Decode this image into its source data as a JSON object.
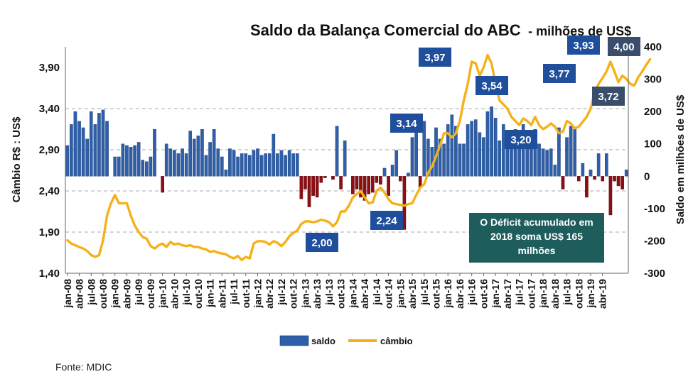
{
  "chart_data": {
    "type": "bar+line",
    "title": "Saldo da Balança Comercial do ABC",
    "subtitle": "- milhões de US$",
    "ylabel_left": "Câmbio R$ : US$",
    "ylabel_right": "Saldo em milhões de US$",
    "ylim_left": [
      1.4,
      4.15
    ],
    "ylim_right": [
      -300,
      400
    ],
    "yticks_left": [
      "3,90",
      "3,40",
      "2,90",
      "2,40",
      "1,90",
      "1,40"
    ],
    "yticks_right": [
      "400",
      "300",
      "200",
      "100",
      "0",
      "-100",
      "-200",
      "-300"
    ],
    "x_tick_labels": [
      "jan-08",
      "abr-08",
      "jul-08",
      "out-08",
      "jan-09",
      "abr-09",
      "jul-09",
      "out-09",
      "jan-10",
      "abr-10",
      "jul-10",
      "out-10",
      "jan-11",
      "abr-11",
      "jul-11",
      "out-11",
      "jan-12",
      "abr-12",
      "jul-12",
      "out-12",
      "jan-13",
      "abr-13",
      "jul-13",
      "out-13",
      "jan-14",
      "abr-14",
      "jul-14",
      "out-14",
      "jan-15",
      "abr-15",
      "jul-15",
      "out-15",
      "jan-16",
      "abr-16",
      "jul-16",
      "out-16",
      "jan-17",
      "abr-17",
      "jul-17",
      "out-17",
      "jan-18",
      "abr-18",
      "jul-18",
      "out-18",
      "jan-19",
      "abr-19"
    ],
    "grid": true,
    "series": [
      {
        "name": "saldo",
        "type": "bar",
        "axis": "right",
        "color": "#2e5fa8",
        "negative_color": "#8b0f14",
        "values": [
          95,
          160,
          200,
          170,
          150,
          115,
          200,
          160,
          195,
          205,
          170,
          0,
          60,
          60,
          100,
          95,
          90,
          95,
          105,
          50,
          45,
          60,
          145,
          0,
          -50,
          100,
          85,
          80,
          70,
          85,
          70,
          140,
          115,
          125,
          145,
          65,
          105,
          145,
          85,
          60,
          20,
          85,
          80,
          60,
          70,
          70,
          65,
          80,
          85,
          65,
          70,
          70,
          130,
          70,
          80,
          65,
          80,
          70,
          70,
          -70,
          -40,
          -95,
          -60,
          -65,
          -20,
          -5,
          0,
          -10,
          155,
          -40,
          110,
          0,
          -55,
          -40,
          -65,
          -75,
          -55,
          -50,
          -20,
          -25,
          25,
          -60,
          35,
          80,
          -15,
          -165,
          10,
          120,
          150,
          -35,
          170,
          115,
          90,
          150,
          115,
          100,
          160,
          190,
          155,
          100,
          100,
          160,
          170,
          175,
          135,
          120,
          200,
          215,
          180,
          110,
          160,
          130,
          140,
          145,
          95,
          160,
          135,
          125,
          145,
          100,
          85,
          80,
          85,
          35,
          150,
          -40,
          120,
          155,
          145,
          -15,
          40,
          -65,
          20,
          -10,
          70,
          -15,
          70,
          -120,
          -15,
          -30,
          -40,
          20
        ]
      },
      {
        "name": "câmbio",
        "type": "line",
        "axis": "left",
        "color": "#f5b11a",
        "values": [
          1.8,
          1.76,
          1.74,
          1.72,
          1.7,
          1.67,
          1.62,
          1.6,
          1.62,
          1.8,
          2.1,
          2.25,
          2.35,
          2.25,
          2.25,
          2.25,
          2.1,
          1.98,
          1.9,
          1.84,
          1.82,
          1.73,
          1.7,
          1.74,
          1.76,
          1.72,
          1.78,
          1.75,
          1.76,
          1.74,
          1.73,
          1.74,
          1.72,
          1.72,
          1.7,
          1.69,
          1.66,
          1.67,
          1.65,
          1.64,
          1.63,
          1.6,
          1.58,
          1.61,
          1.56,
          1.6,
          1.58,
          1.76,
          1.79,
          1.79,
          1.78,
          1.75,
          1.79,
          1.77,
          1.73,
          1.78,
          1.85,
          1.89,
          1.92,
          2.0,
          2.03,
          2.03,
          2.02,
          2.03,
          2.05,
          2.04,
          2.02,
          1.97,
          2.02,
          2.15,
          2.15,
          2.22,
          2.32,
          2.36,
          2.4,
          2.32,
          2.25,
          2.26,
          2.4,
          2.44,
          2.38,
          2.3,
          2.25,
          2.24,
          2.23,
          2.22,
          2.24,
          2.25,
          2.35,
          2.44,
          2.48,
          2.62,
          2.7,
          2.82,
          2.95,
          3.1,
          3.1,
          3.05,
          3.1,
          3.25,
          3.5,
          3.7,
          3.97,
          3.95,
          3.8,
          3.9,
          4.05,
          3.95,
          3.7,
          3.5,
          3.45,
          3.4,
          3.3,
          3.25,
          3.2,
          3.28,
          3.25,
          3.2,
          3.3,
          3.2,
          3.15,
          3.18,
          3.22,
          3.18,
          3.1,
          3.12,
          3.25,
          3.22,
          3.16,
          3.18,
          3.24,
          3.3,
          3.4,
          3.6,
          3.7,
          3.77,
          3.85,
          3.97,
          3.85,
          3.72,
          3.8,
          3.76,
          3.7,
          3.68,
          3.78,
          3.85,
          3.93,
          4.0
        ]
      }
    ],
    "annotations": [
      {
        "text": "2,00",
        "style": "blue"
      },
      {
        "text": "2,24",
        "style": "blue"
      },
      {
        "text": "3,14",
        "style": "blue"
      },
      {
        "text": "3,97",
        "style": "blue"
      },
      {
        "text": "3,54",
        "style": "blue"
      },
      {
        "text": "3,20",
        "style": "blue"
      },
      {
        "text": "3,77",
        "style": "blue"
      },
      {
        "text": "3,93",
        "style": "blue"
      },
      {
        "text": "3,72",
        "style": "gray"
      },
      {
        "text": "4,00",
        "style": "gray"
      }
    ],
    "note": {
      "lines": [
        "O Déficit acumulado em",
        "2018 soma US$ 165",
        "milhões"
      ],
      "color": "#1f5d5d"
    },
    "legend": {
      "position": "bottom-center",
      "items": [
        {
          "label": "saldo",
          "color": "#2e5fa8"
        },
        {
          "label": "câmbio",
          "color": "#f5b11a"
        }
      ]
    }
  },
  "source": "Fonte: MDIC"
}
